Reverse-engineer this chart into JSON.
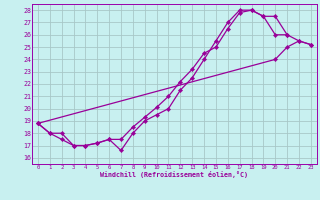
{
  "xlabel": "Windchill (Refroidissement éolien,°C)",
  "bg_color": "#c8f0f0",
  "grid_color": "#a8c8c8",
  "line_color": "#990099",
  "spine_color": "#9900aa",
  "tick_color": "#9900aa",
  "xlim": [
    -0.5,
    23.5
  ],
  "ylim": [
    15.5,
    28.5
  ],
  "xticks": [
    0,
    1,
    2,
    3,
    4,
    5,
    6,
    7,
    8,
    9,
    10,
    11,
    12,
    13,
    14,
    15,
    16,
    17,
    18,
    19,
    20,
    21,
    22,
    23
  ],
  "yticks": [
    16,
    17,
    18,
    19,
    20,
    21,
    22,
    23,
    24,
    25,
    26,
    27,
    28
  ],
  "line1_x": [
    0,
    1,
    2,
    3,
    4,
    5,
    6,
    7,
    8,
    9,
    10,
    11,
    12,
    13,
    14,
    15,
    16,
    17,
    18,
    19,
    20,
    21
  ],
  "line1_y": [
    18.8,
    18.0,
    18.0,
    17.0,
    17.0,
    17.2,
    17.5,
    16.6,
    18.0,
    19.0,
    19.5,
    20.0,
    21.5,
    22.5,
    24.0,
    25.5,
    27.0,
    28.0,
    28.0,
    27.5,
    26.0,
    26.0
  ],
  "line2_x": [
    0,
    1,
    2,
    3,
    4,
    5,
    6,
    7,
    8,
    9,
    10,
    11,
    12,
    13,
    14,
    15,
    16,
    17,
    18,
    19,
    20,
    21,
    22,
    23
  ],
  "line2_y": [
    18.8,
    18.0,
    17.5,
    17.0,
    17.0,
    17.2,
    17.5,
    17.5,
    18.5,
    19.3,
    20.1,
    21.0,
    22.2,
    23.2,
    24.5,
    25.0,
    26.5,
    27.8,
    28.0,
    27.5,
    27.5,
    26.0,
    25.5,
    25.2
  ],
  "line3_x": [
    0,
    20,
    21,
    22,
    23
  ],
  "line3_y": [
    18.8,
    24.0,
    25.0,
    25.5,
    25.2
  ]
}
